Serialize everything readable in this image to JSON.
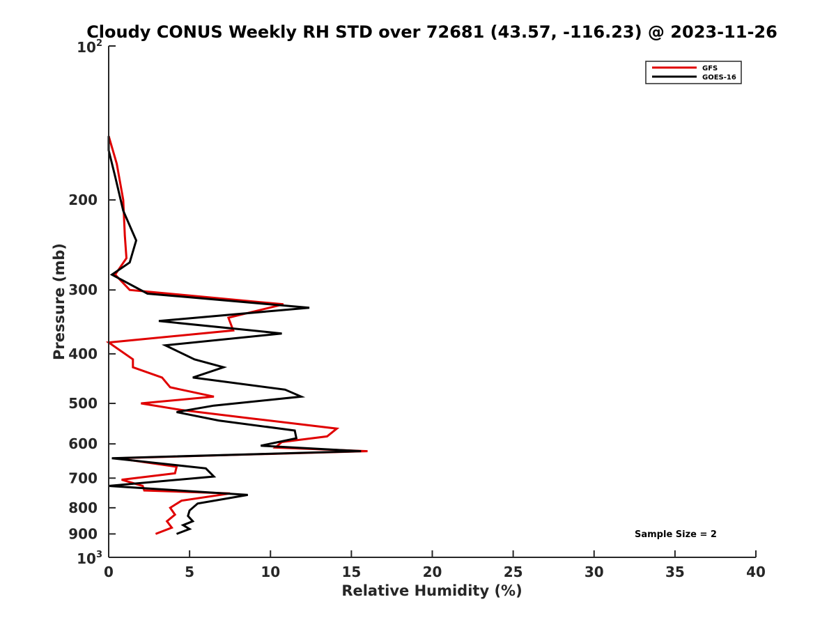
{
  "chart_data": {
    "type": "line",
    "title": "Cloudy CONUS Weekly RH STD over 72681 (43.57, -116.23) @ 2023-11-26",
    "xlabel": "Relative Humidity (%)",
    "ylabel": "Pressure (mb)",
    "xlim": [
      0,
      40
    ],
    "ylim": [
      100,
      1000
    ],
    "y_scale": "log",
    "y_reversed": true,
    "x_ticks": [
      0,
      5,
      10,
      15,
      20,
      25,
      30,
      35,
      40
    ],
    "x_tick_labels": [
      "0",
      "5",
      "10",
      "15",
      "20",
      "25",
      "30",
      "35",
      "40"
    ],
    "y_ticks": [
      200,
      300,
      400,
      500,
      600,
      700,
      800,
      900
    ],
    "y_tick_labels": [
      "200",
      "300",
      "400",
      "500",
      "600",
      "700",
      "800",
      "900"
    ],
    "y_end_labels": {
      "top": {
        "base": "10",
        "exp": "2",
        "value": 100
      },
      "bottom": {
        "base": "10",
        "exp": "3",
        "value": 1000
      }
    },
    "grid": false,
    "legend_position": "top-right",
    "annotation": "Sample Size = 2",
    "series": [
      {
        "name": "GFS",
        "color": "#e00000",
        "points": [
          [
            2.9,
            900
          ],
          [
            3.9,
            875
          ],
          [
            3.6,
            850
          ],
          [
            4.1,
            825
          ],
          [
            3.8,
            800
          ],
          [
            4.5,
            775
          ],
          [
            7.5,
            750
          ],
          [
            2.2,
            740
          ],
          [
            2.1,
            725
          ],
          [
            0.8,
            705
          ],
          [
            4.1,
            685
          ],
          [
            4.2,
            665
          ],
          [
            0.5,
            640
          ],
          [
            16.0,
            620
          ],
          [
            10.3,
            610
          ],
          [
            10.7,
            595
          ],
          [
            13.5,
            580
          ],
          [
            14.1,
            560
          ],
          [
            8.8,
            535
          ],
          [
            4.5,
            515
          ],
          [
            2.0,
            500
          ],
          [
            6.5,
            485
          ],
          [
            3.8,
            465
          ],
          [
            3.3,
            445
          ],
          [
            1.5,
            425
          ],
          [
            1.5,
            410
          ],
          [
            0.0,
            380
          ],
          [
            7.7,
            360
          ],
          [
            7.4,
            340
          ],
          [
            10.8,
            320
          ],
          [
            1.3,
            300
          ],
          [
            0.4,
            280
          ],
          [
            1.1,
            260
          ],
          [
            1.0,
            235
          ],
          [
            0.9,
            200
          ],
          [
            0.5,
            170
          ],
          [
            0.0,
            150
          ]
        ]
      },
      {
        "name": "GOES-16",
        "color": "#000000",
        "points": [
          [
            4.2,
            900
          ],
          [
            5.0,
            880
          ],
          [
            4.6,
            865
          ],
          [
            5.2,
            850
          ],
          [
            4.9,
            830
          ],
          [
            5.0,
            810
          ],
          [
            5.5,
            785
          ],
          [
            8.6,
            755
          ],
          [
            0.0,
            725
          ],
          [
            6.5,
            695
          ],
          [
            6.0,
            670
          ],
          [
            0.2,
            640
          ],
          [
            15.6,
            620
          ],
          [
            9.4,
            605
          ],
          [
            11.6,
            585
          ],
          [
            11.5,
            565
          ],
          [
            6.8,
            540
          ],
          [
            4.2,
            520
          ],
          [
            6.5,
            505
          ],
          [
            11.9,
            485
          ],
          [
            10.9,
            470
          ],
          [
            5.2,
            445
          ],
          [
            7.1,
            425
          ],
          [
            5.3,
            410
          ],
          [
            3.5,
            385
          ],
          [
            10.7,
            365
          ],
          [
            3.1,
            345
          ],
          [
            12.4,
            325
          ],
          [
            2.4,
            305
          ],
          [
            0.2,
            280
          ],
          [
            1.3,
            265
          ],
          [
            1.7,
            240
          ],
          [
            0.9,
            210
          ],
          [
            0.4,
            180
          ],
          [
            0.0,
            160
          ],
          [
            0.0,
            150
          ]
        ]
      }
    ]
  }
}
